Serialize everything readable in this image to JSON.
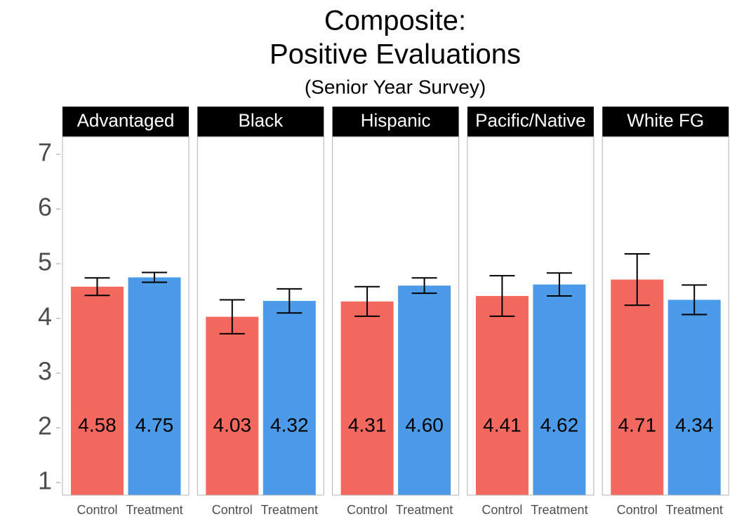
{
  "chart_data": {
    "type": "bar",
    "title": [
      "Composite:",
      "Positive Evaluations"
    ],
    "subtitle": "(Senior Year Survey)",
    "categories": [
      "Control",
      "Treatment"
    ],
    "colors": [
      "#f4695f",
      "#4b9be8"
    ],
    "facets": [
      {
        "name": "Advantaged",
        "values": [
          4.58,
          4.75
        ],
        "value_labels": [
          "4.58",
          "4.75"
        ],
        "errors": [
          0.16,
          0.09
        ]
      },
      {
        "name": "Black",
        "values": [
          4.03,
          4.32
        ],
        "value_labels": [
          "4.03",
          "4.32"
        ],
        "errors": [
          0.31,
          0.22
        ]
      },
      {
        "name": "Hispanic",
        "values": [
          4.31,
          4.6
        ],
        "value_labels": [
          "4.31",
          "4.60"
        ],
        "errors": [
          0.27,
          0.14
        ]
      },
      {
        "name": "Pacific/Native",
        "values": [
          4.41,
          4.62
        ],
        "value_labels": [
          "4.41",
          "4.62"
        ],
        "errors": [
          0.37,
          0.21
        ]
      },
      {
        "name": "White FG",
        "values": [
          4.71,
          4.34
        ],
        "value_labels": [
          "4.71",
          "4.34"
        ],
        "errors": [
          0.47,
          0.27
        ]
      }
    ],
    "ylim": [
      0.77,
      7.32
    ],
    "yticks": [
      1,
      2,
      3,
      4,
      5,
      6,
      7
    ],
    "grid": false
  }
}
